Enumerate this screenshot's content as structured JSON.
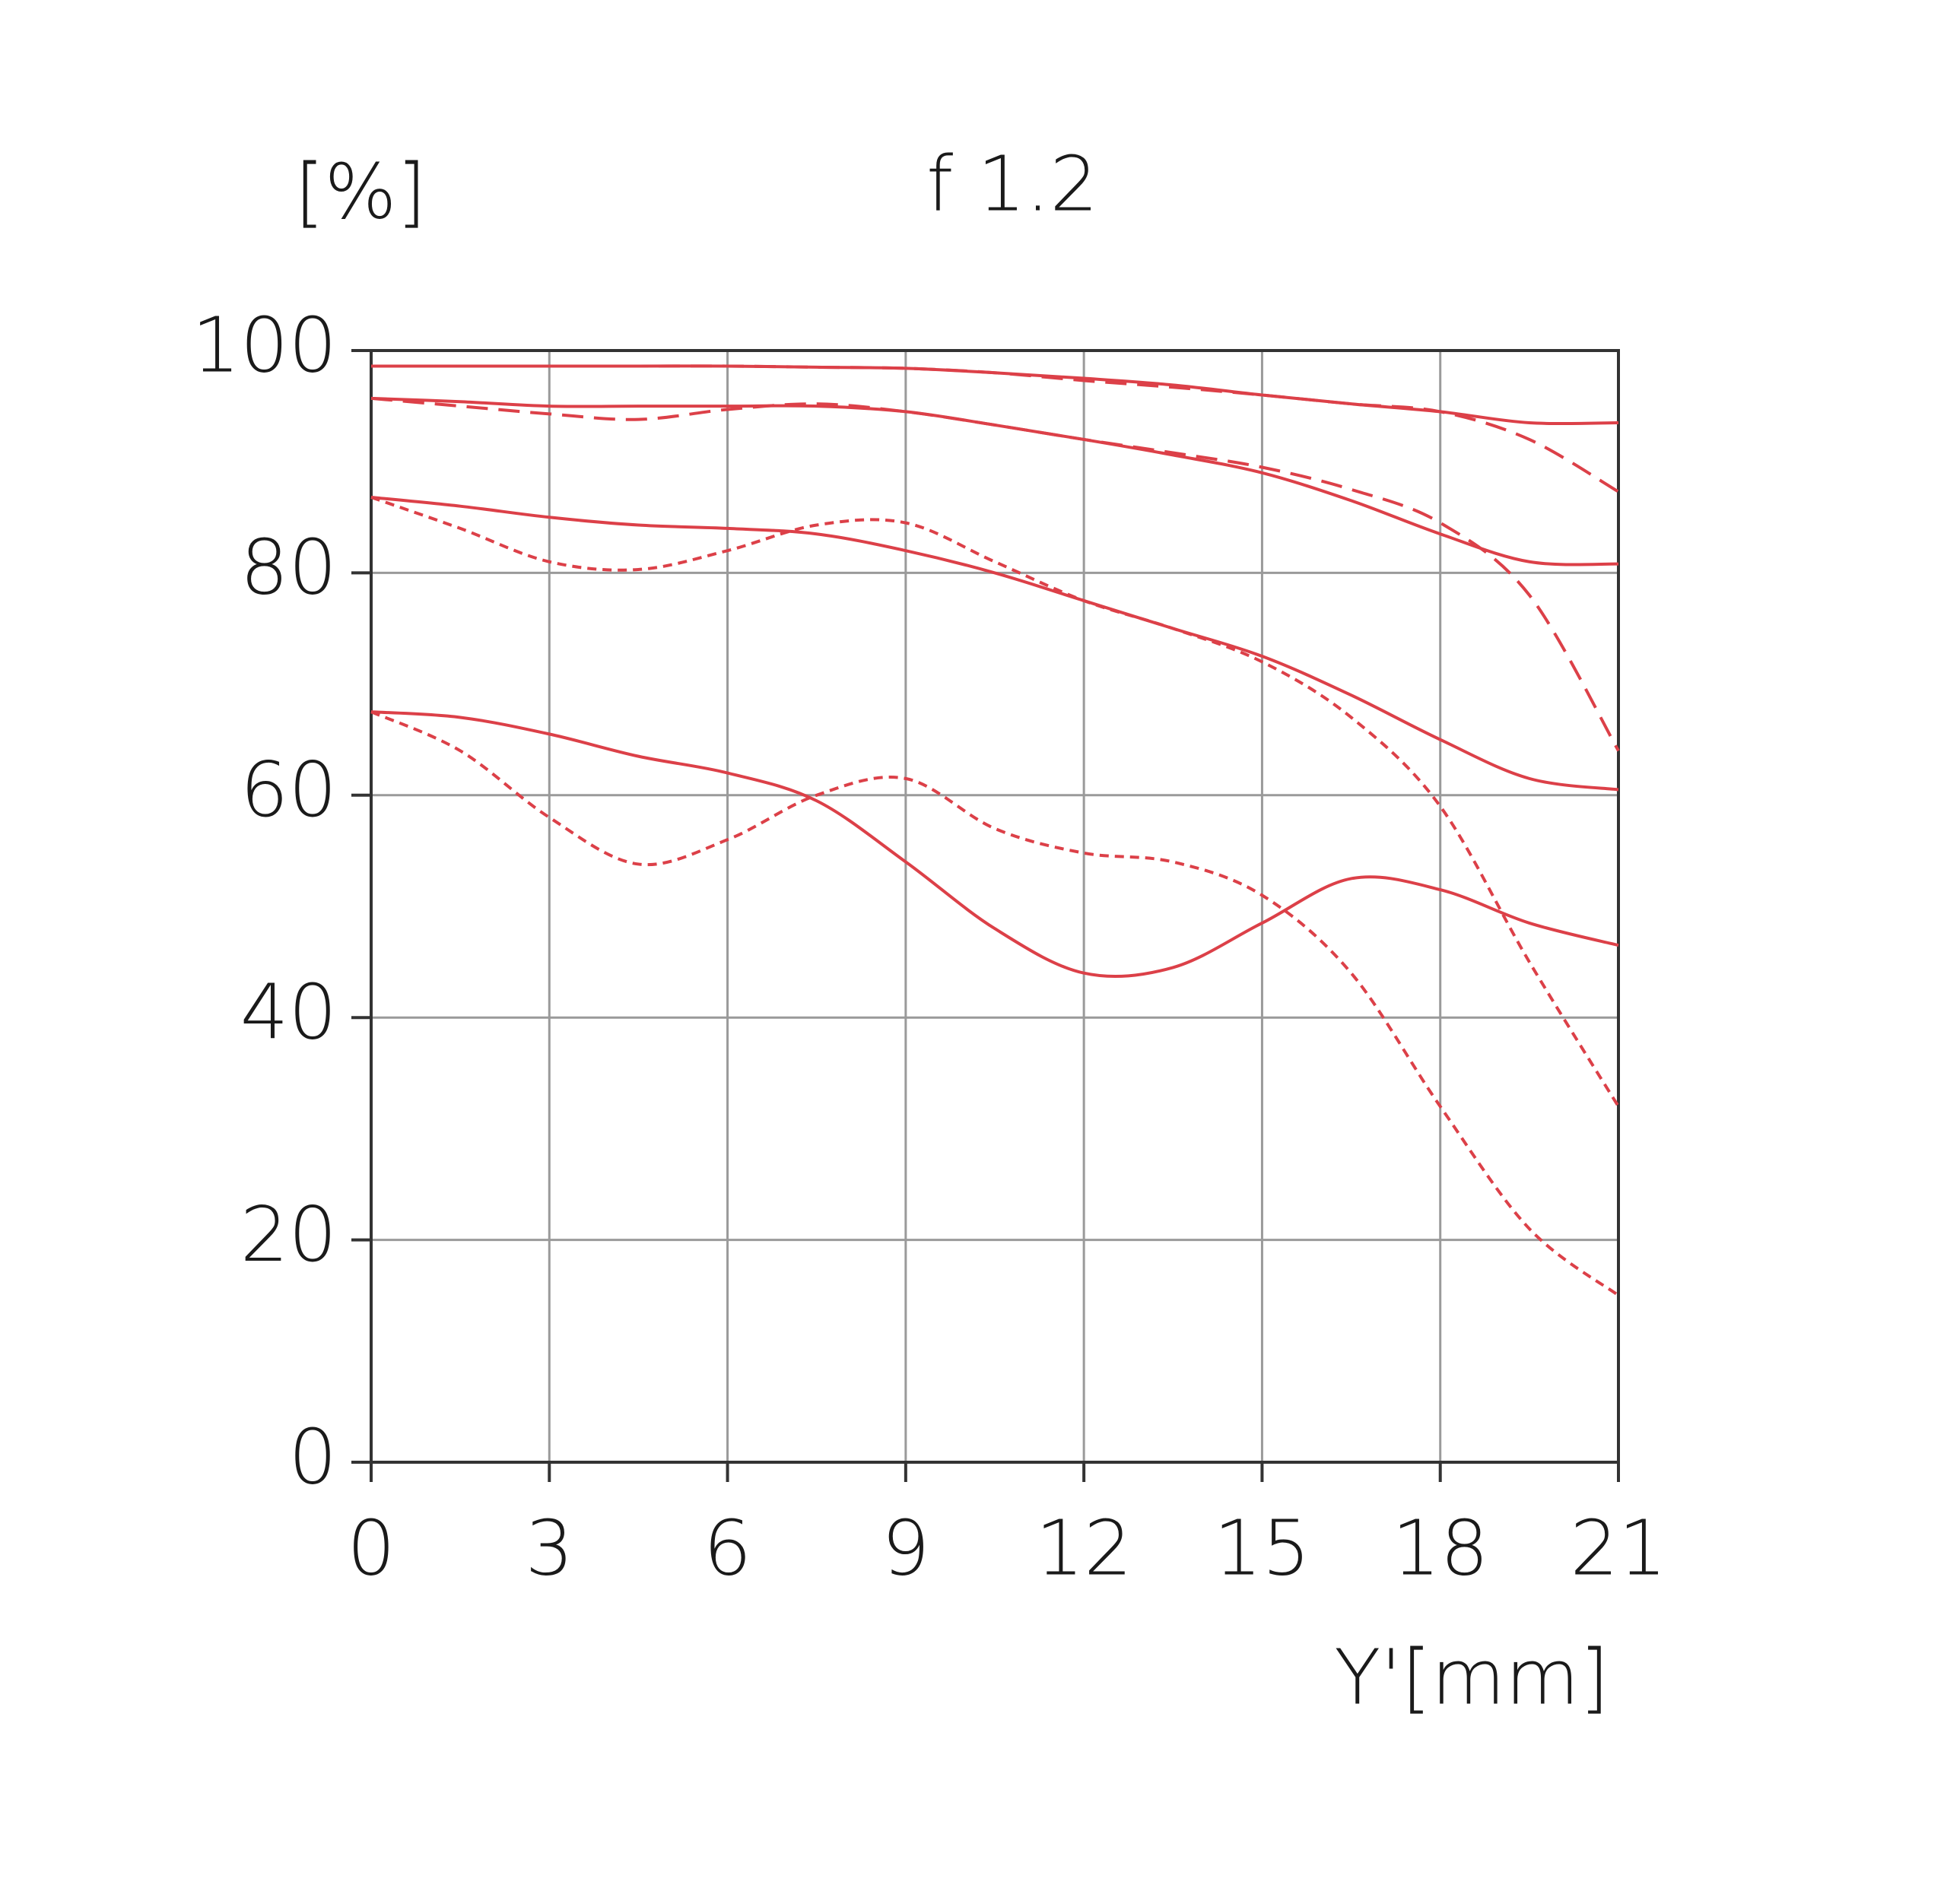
{
  "chart_data": {
    "type": "line",
    "title": "f 1.2",
    "y_label": "[%]",
    "x_label": "Y'[mm]",
    "x": [
      0,
      1.5,
      3,
      4.5,
      6,
      7.5,
      9,
      10.5,
      12,
      13.5,
      15,
      16.5,
      18,
      19.5,
      21
    ],
    "series": [
      {
        "color": "#dc4048",
        "dash": "solid",
        "values": [
          98.6,
          98.6,
          98.6,
          98.6,
          98.6,
          98.5,
          98.4,
          98,
          97.5,
          96.9,
          96,
          95.2,
          94.5,
          93.5,
          93.5
        ]
      },
      {
        "color": "#dc4048",
        "dash": "dashed",
        "values": [
          98.6,
          98.6,
          98.6,
          98.6,
          98.6,
          98.5,
          98.4,
          98,
          97.3,
          96.7,
          96,
          95.2,
          94.5,
          92,
          87.3
        ]
      },
      {
        "color": "#dc4048",
        "dash": "solid",
        "values": [
          95.7,
          95.4,
          95,
          95,
          95,
          95,
          94.5,
          93.3,
          92,
          90.6,
          89,
          86.5,
          83.5,
          81,
          80.8
        ]
      },
      {
        "color": "#dc4048",
        "dash": "dashed",
        "values": [
          95.7,
          95,
          94.3,
          93.8,
          94.7,
          95.2,
          94.5,
          93.3,
          92,
          90.8,
          89.5,
          87.5,
          84.5,
          78,
          64
        ]
      },
      {
        "color": "#dc4048",
        "dash": "solid",
        "values": [
          86.8,
          86,
          85,
          84.3,
          84,
          83.5,
          82,
          80,
          77.5,
          75,
          72.5,
          69,
          65,
          61.5,
          60.5
        ]
      },
      {
        "color": "#dc4048",
        "dash": "dotted",
        "values": [
          86.8,
          84,
          81,
          80.3,
          82,
          84.3,
          84.5,
          81,
          77.5,
          75,
          72,
          67,
          59,
          45,
          32
        ]
      },
      {
        "color": "#dc4048",
        "dash": "solid",
        "values": [
          67.5,
          67,
          65.5,
          63.5,
          62,
          59.5,
          54,
          48,
          44,
          44.5,
          48.5,
          52.5,
          51.5,
          48.5,
          46.5
        ]
      },
      {
        "color": "#dc4048",
        "dash": "dotted",
        "values": [
          67.5,
          64,
          58,
          53.8,
          56,
          60,
          61.5,
          57,
          54.8,
          54,
          51,
          44,
          32,
          21,
          15
        ]
      }
    ],
    "xlim": [
      0,
      21
    ],
    "xticks": [
      0,
      3,
      6,
      9,
      12,
      15,
      18,
      21
    ],
    "ylim": [
      0,
      100
    ],
    "yticks": [
      0,
      20,
      40,
      60,
      80,
      100
    ],
    "grid": true
  }
}
